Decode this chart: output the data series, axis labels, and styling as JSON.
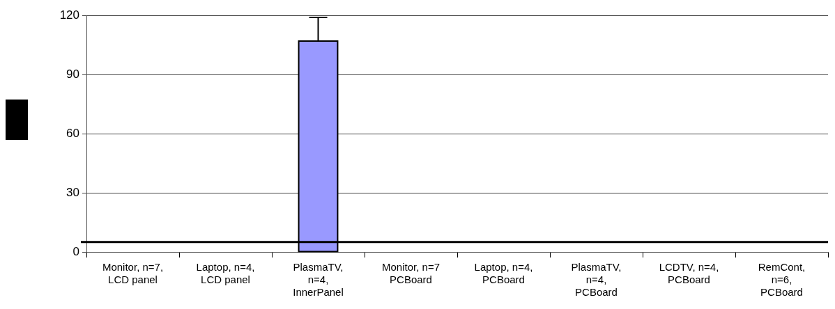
{
  "chart_data": {
    "type": "bar",
    "categories": [
      "Monitor, n=7, LCD panel",
      "Laptop, n=4, LCD panel",
      "PlasmaTV, n=4, InnerPanel",
      "Monitor, n=7 PCBoard",
      "Laptop, n=4, PCBoard",
      "PlasmaTV, n=4, PCBoard",
      "LCDTV, n=4, PCBoard",
      "RemCont, n=6, PCBoard"
    ],
    "values": [
      null,
      null,
      107,
      null,
      null,
      null,
      null,
      null
    ],
    "errors": [
      null,
      null,
      [
        107,
        119
      ],
      null,
      null,
      null,
      null,
      null
    ],
    "color": "#9999ff",
    "ylim": [
      0,
      120
    ],
    "yticks": [
      0,
      30,
      60,
      90,
      120
    ],
    "grid": "y",
    "legend": false,
    "ref_lines": [
      {
        "axis": "y",
        "value": 5,
        "color": "#000000"
      }
    ]
  }
}
